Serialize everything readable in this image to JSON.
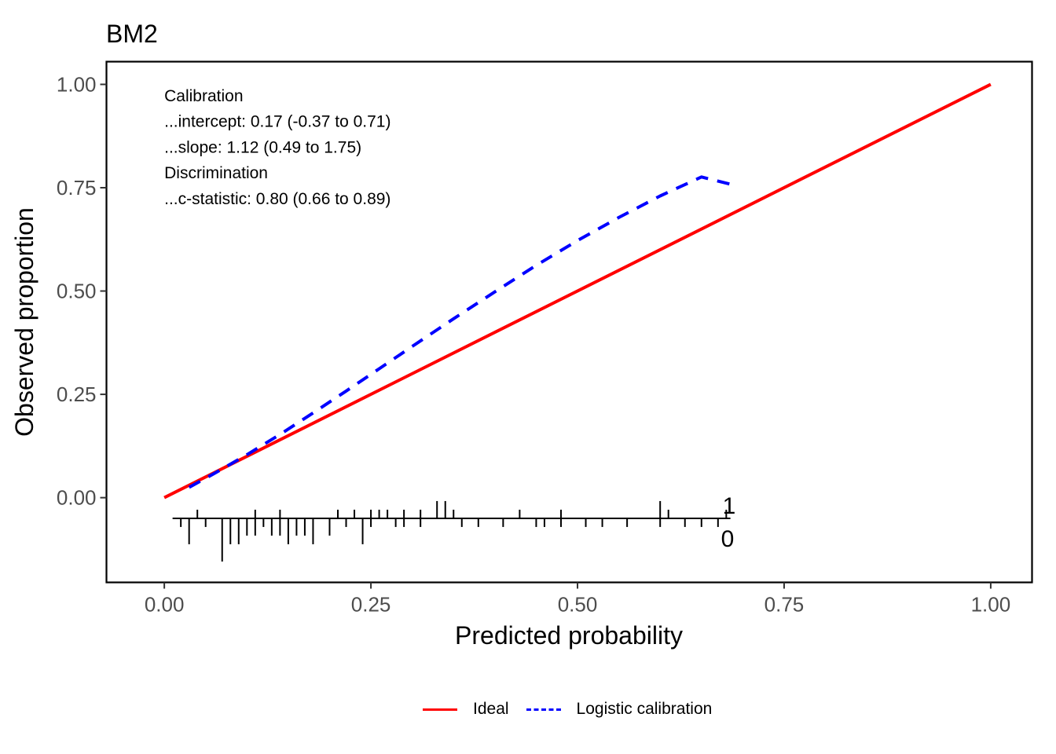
{
  "chart_data": {
    "type": "line",
    "title": "BM2",
    "xlabel": "Predicted probability",
    "ylabel": "Observed proportion",
    "xlim": [
      -0.07,
      1.05
    ],
    "ylim": [
      -0.205,
      1.055
    ],
    "xticks": [
      0.0,
      0.25,
      0.5,
      0.75,
      1.0
    ],
    "xtick_labels": [
      "0.00",
      "0.25",
      "0.50",
      "0.75",
      "1.00"
    ],
    "yticks": [
      0.0,
      0.25,
      0.5,
      0.75,
      1.0
    ],
    "ytick_labels": [
      "0.00",
      "0.25",
      "0.50",
      "0.75",
      "1.00"
    ],
    "grid": false,
    "legend_position": "bottom",
    "series": [
      {
        "name": "Ideal",
        "color": "#FF0000",
        "dash": "solid",
        "x": [
          0.0,
          1.0
        ],
        "y": [
          0.0,
          1.0
        ]
      },
      {
        "name": "Logistic calibration",
        "color": "#0000FF",
        "dash": "dashed",
        "x": [
          0.03,
          0.06,
          0.1,
          0.14,
          0.18,
          0.22,
          0.26,
          0.3,
          0.35,
          0.4,
          0.45,
          0.5,
          0.55,
          0.6,
          0.65,
          0.69
        ],
        "y": [
          0.025,
          0.058,
          0.104,
          0.153,
          0.205,
          0.258,
          0.312,
          0.366,
          0.433,
          0.498,
          0.562,
          0.622,
          0.678,
          0.73,
          0.776,
          0.756
        ]
      }
    ],
    "annotation_lines": [
      "Calibration",
      "...intercept: 0.17 (-0.37 to 0.71)",
      "...slope: 1.12 (0.49 to 1.75)",
      "Discrimination",
      "...c-statistic: 0.80 (0.66 to 0.89)"
    ],
    "rug": {
      "label_events": "1",
      "label_nonevents": "0",
      "baseline_y": -0.05,
      "events_x": [
        0.04,
        0.11,
        0.14,
        0.21,
        0.23,
        0.25,
        0.26,
        0.27,
        0.29,
        0.31,
        0.33,
        0.34,
        0.35,
        0.43,
        0.48,
        0.6,
        0.61,
        0.68
      ],
      "events_h": [
        1,
        1,
        1,
        1,
        1,
        1,
        1,
        1,
        1,
        1,
        2,
        2,
        1,
        1,
        1,
        2,
        1,
        1
      ],
      "nonevents_x": [
        0.02,
        0.03,
        0.05,
        0.07,
        0.08,
        0.09,
        0.1,
        0.11,
        0.12,
        0.13,
        0.14,
        0.15,
        0.16,
        0.17,
        0.18,
        0.2,
        0.22,
        0.24,
        0.25,
        0.28,
        0.29,
        0.31,
        0.36,
        0.38,
        0.41,
        0.45,
        0.46,
        0.48,
        0.51,
        0.53,
        0.56,
        0.6,
        0.63,
        0.65,
        0.67
      ],
      "nonevents_h": [
        1,
        3,
        1,
        5,
        3,
        3,
        2,
        2,
        1,
        2,
        2,
        3,
        2,
        2,
        3,
        2,
        1,
        3,
        1,
        1,
        1,
        1,
        1,
        1,
        1,
        1,
        1,
        1,
        1,
        1,
        1,
        1,
        1,
        1,
        1
      ]
    }
  }
}
